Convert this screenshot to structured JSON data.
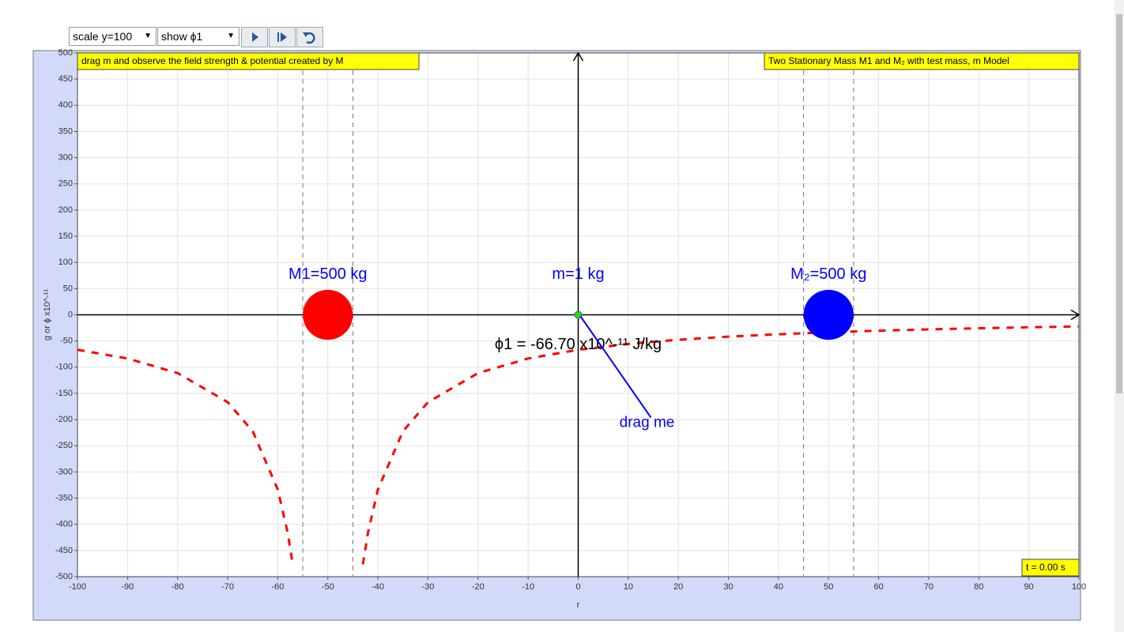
{
  "controls": {
    "scale": "scale y=100",
    "show": "show ϕ1"
  },
  "left_note": "drag m and observe the field strength & potential created by M",
  "right_note": "Two Stationary Mass M1 and M₂ with test mass, m Model",
  "time": "t = 0.00 s",
  "potential_label": "ϕ1 = -66.70 x10^-¹¹ J/kg",
  "drag_label": "drag me",
  "masses": [
    {
      "label": "M1=500 kg",
      "r": -50,
      "radius": 5,
      "color": "#ff0000"
    },
    {
      "label": "m=1 kg",
      "r": 0,
      "radius": 0.7,
      "color": "#33cc33"
    },
    {
      "label": "M₂=500 kg",
      "r": 50,
      "radius": 5,
      "color": "#0000ff"
    }
  ],
  "chart_data": {
    "type": "line",
    "x_label": "r",
    "y_label": "g or ϕ x10^-¹¹",
    "xlim": [
      -100,
      100
    ],
    "ylim": [
      -500,
      500
    ],
    "xticks": [
      -100,
      -90,
      -80,
      -70,
      -60,
      -50,
      -40,
      -30,
      -20,
      -10,
      0,
      10,
      20,
      30,
      40,
      50,
      60,
      70,
      80,
      90,
      100
    ],
    "yticks": [
      -500,
      -450,
      -400,
      -350,
      -300,
      -250,
      -200,
      -150,
      -100,
      -50,
      0,
      50,
      100,
      150,
      200,
      250,
      300,
      350,
      400,
      450,
      500
    ],
    "grid": true,
    "x": [
      -100,
      -90,
      -80,
      -70,
      -65,
      -60,
      -58,
      -57,
      null,
      -43,
      -42,
      -40,
      -35,
      -30,
      -20,
      -10,
      0,
      10,
      20,
      30,
      40,
      50,
      60,
      70,
      80,
      90,
      100
    ],
    "series": [
      {
        "color": "#ff0000",
        "values": [
          -66.7,
          -83.4,
          -111.2,
          -166.8,
          -222.3,
          -333.5,
          -416.9,
          -476.4,
          null,
          -476.4,
          -416.9,
          -333.5,
          -222.3,
          -166.8,
          -111.2,
          -83.4,
          -66.7,
          -55.6,
          -47.6,
          -41.7,
          -37.1,
          -33.4,
          -30.3,
          -27.8,
          -25.7,
          -23.8,
          -22.2
        ]
      }
    ]
  }
}
